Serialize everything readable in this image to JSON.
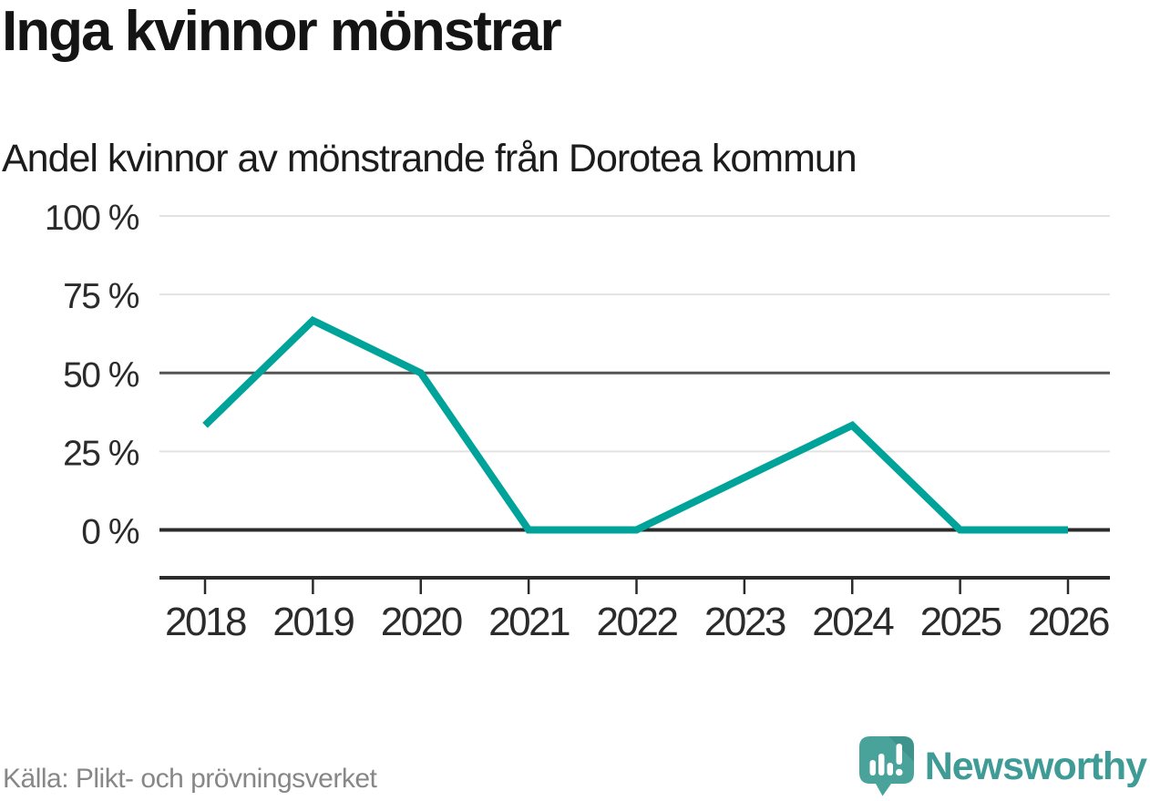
{
  "header": {
    "title": "Inga kvinnor mönstrar",
    "subtitle": "Andel kvinnor av mönstrande från Dorotea kommun"
  },
  "chart_data": {
    "type": "line",
    "title": "Inga kvinnor mönstrar",
    "subtitle": "Andel kvinnor av mönstrande från Dorotea kommun",
    "x": [
      2018,
      2019,
      2020,
      2021,
      2022,
      2023,
      2024,
      2025,
      2026
    ],
    "series": [
      {
        "name": "Andel kvinnor av mönstrande",
        "values": [
          33.3,
          66.7,
          50,
          0,
          0,
          16.7,
          33.3,
          0,
          0
        ]
      }
    ],
    "unit": "%",
    "ylim": [
      0,
      100
    ],
    "yticks": [
      0,
      25,
      50,
      75,
      100
    ],
    "ytick_label_format": "{value} %",
    "grid": "horizontal",
    "legend": "none",
    "markers": "none"
  },
  "colors": {
    "line": "#00a39a",
    "grid_light": "#e2e2e2",
    "grid_mid": "#545454",
    "grid_zero": "#2b2b2b",
    "axis": "#2b2b2b",
    "tick_text": "#2b2b2b",
    "muted_text": "#878787",
    "brand_teal": "#3f9b95",
    "logo_bubble": "#4aa39b",
    "logo_fold": "#3e948c"
  },
  "footer": {
    "source": "Källa: Plikt- och prövningsverket",
    "brand": "Newsworthy"
  }
}
